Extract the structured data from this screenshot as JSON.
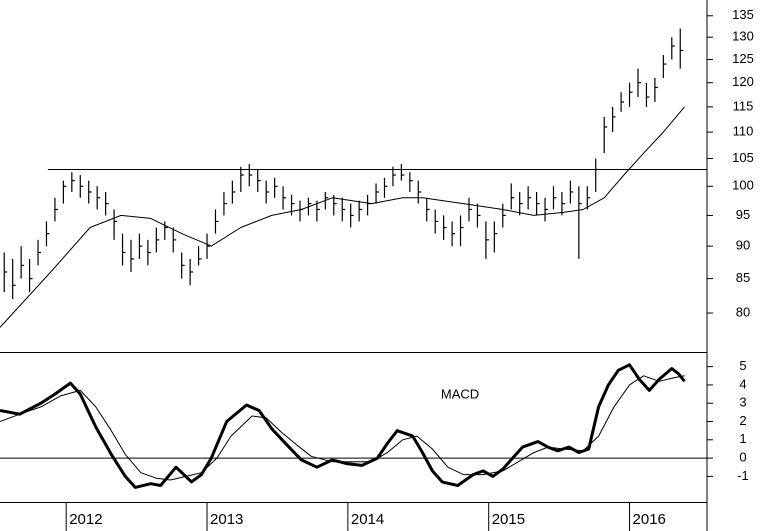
{
  "chart_data": [
    {
      "type": "ohlc",
      "color": "#000000",
      "log": true,
      "xlim": [
        2011.53,
        2016.55
      ],
      "ylim": [
        74.7,
        138.8
      ],
      "yticks": [
        80,
        85,
        90,
        95,
        100,
        105,
        110,
        115,
        120,
        125,
        130,
        135
      ],
      "x": [
        2011.56,
        2011.62,
        2011.68,
        2011.74,
        2011.8,
        2011.86,
        2011.92,
        2011.98,
        2012.04,
        2012.1,
        2012.16,
        2012.22,
        2012.28,
        2012.34,
        2012.4,
        2012.46,
        2012.52,
        2012.58,
        2012.64,
        2012.7,
        2012.76,
        2012.82,
        2012.88,
        2012.94,
        2013.0,
        2013.06,
        2013.12,
        2013.18,
        2013.24,
        2013.3,
        2013.36,
        2013.42,
        2013.48,
        2013.54,
        2013.6,
        2013.66,
        2013.72,
        2013.78,
        2013.84,
        2013.9,
        2013.96,
        2014.02,
        2014.08,
        2014.14,
        2014.2,
        2014.26,
        2014.32,
        2014.38,
        2014.44,
        2014.5,
        2014.56,
        2014.62,
        2014.68,
        2014.74,
        2014.8,
        2014.86,
        2014.92,
        2014.98,
        2015.04,
        2015.1,
        2015.16,
        2015.22,
        2015.28,
        2015.34,
        2015.4,
        2015.46,
        2015.52,
        2015.58,
        2015.64,
        2015.7,
        2015.76,
        2015.82,
        2015.88,
        2015.94,
        2016.0,
        2016.06,
        2016.12,
        2016.18,
        2016.24,
        2016.3,
        2016.36
      ],
      "high": [
        89,
        88,
        90,
        88,
        91,
        94,
        98,
        101,
        102.5,
        102,
        101,
        100,
        99,
        96,
        92,
        91,
        92,
        91,
        93,
        94,
        93,
        89,
        88,
        90,
        92,
        96,
        99,
        101,
        103.5,
        104,
        103,
        101,
        101.5,
        100,
        98.5,
        97.5,
        98,
        97.5,
        99,
        98.5,
        98,
        97,
        97.5,
        98.5,
        100.5,
        101.5,
        103.5,
        104,
        102.5,
        101,
        98,
        96,
        95,
        94,
        95,
        98,
        97,
        94,
        94,
        97,
        100.5,
        99,
        100,
        99,
        98,
        100,
        99,
        101,
        100,
        100,
        105,
        113,
        115,
        118,
        120,
        123,
        120,
        121,
        126,
        130,
        132
      ],
      "low": [
        83,
        82,
        85,
        83,
        87,
        90,
        94,
        97,
        99,
        98,
        97,
        96,
        95,
        91,
        87,
        86,
        88,
        87,
        89,
        91,
        89,
        85,
        84,
        87,
        88,
        92,
        95,
        97,
        99,
        100,
        99,
        97,
        98,
        96,
        95,
        94,
        95,
        94,
        96,
        95,
        94,
        93,
        94,
        95,
        97,
        98,
        100,
        101,
        99,
        97,
        94,
        92,
        91,
        90,
        90,
        94,
        93,
        88,
        89,
        93,
        96,
        95,
        96,
        95,
        94,
        96,
        95,
        97,
        88,
        96,
        99,
        106,
        110,
        114,
        115,
        117,
        115,
        116,
        121,
        125,
        123
      ],
      "close": [
        86,
        84,
        87,
        85,
        89,
        92,
        96,
        100,
        101,
        100,
        99,
        98,
        97,
        94,
        89,
        88,
        90,
        89,
        91,
        93,
        91,
        87,
        86,
        88,
        90,
        94,
        97,
        99,
        102,
        102,
        101,
        99,
        100,
        98,
        97,
        96,
        97,
        96,
        98,
        97,
        96,
        95,
        96,
        97,
        99,
        100,
        102,
        102,
        101,
        99,
        96,
        94,
        93,
        92,
        93,
        96,
        95,
        91,
        92,
        95,
        98,
        97,
        98,
        97,
        96,
        98,
        97,
        99,
        97,
        98,
        103,
        111,
        113,
        116,
        118,
        120,
        117,
        119,
        124,
        128,
        127
      ],
      "lines": [
        {
          "color": "#000000",
          "x": [
            2011.53,
            2011.89,
            2012.17,
            2012.39,
            2012.6,
            2012.82,
            2013.03,
            2013.24,
            2013.46,
            2013.67,
            2013.89,
            2014.17,
            2014.39,
            2014.53,
            2014.82,
            2015.1,
            2015.32,
            2015.53,
            2015.67,
            2015.82,
            2015.96,
            2016.1,
            2016.24,
            2016.39
          ],
          "values": [
            78,
            86,
            93,
            95,
            94.5,
            92,
            90,
            93,
            95,
            96,
            98,
            97,
            98,
            98,
            97,
            96,
            95,
            95.5,
            96,
            98,
            102,
            106,
            110,
            115
          ]
        }
      ],
      "hlines": [
        {
          "value": 103,
          "from": 2011.87
        }
      ]
    },
    {
      "type": "line",
      "title": "MACD",
      "xlim": [
        2011.53,
        2016.55
      ],
      "ylim": [
        -2.4,
        5.8
      ],
      "yticks": [
        -1,
        0,
        1,
        2,
        3,
        4,
        5
      ],
      "xticks": [
        2012,
        2013,
        2014,
        2015,
        2016
      ],
      "hlines": [
        {
          "value": 0,
          "from": 2011.53
        }
      ],
      "series": [
        {
          "color": "#000000",
          "width": 3,
          "x": [
            2011.53,
            2011.67,
            2011.82,
            2011.92,
            2012.03,
            2012.1,
            2012.21,
            2012.32,
            2012.42,
            2012.49,
            2012.6,
            2012.67,
            2012.78,
            2012.89,
            2012.96,
            2013.03,
            2013.14,
            2013.28,
            2013.37,
            2013.46,
            2013.57,
            2013.67,
            2013.78,
            2013.89,
            2013.99,
            2014.1,
            2014.21,
            2014.28,
            2014.35,
            2014.46,
            2014.53,
            2014.6,
            2014.67,
            2014.78,
            2014.89,
            2014.96,
            2015.03,
            2015.1,
            2015.17,
            2015.24,
            2015.35,
            2015.42,
            2015.49,
            2015.57,
            2015.64,
            2015.71,
            2015.78,
            2015.85,
            2015.92,
            2016.0,
            2016.07,
            2016.14,
            2016.21,
            2016.3,
            2016.35,
            2016.39
          ],
          "values": [
            2.6,
            2.4,
            3.0,
            3.5,
            4.1,
            3.5,
            1.7,
            0.2,
            -1.0,
            -1.6,
            -1.4,
            -1.5,
            -0.5,
            -1.3,
            -0.9,
            0.0,
            2.0,
            2.9,
            2.6,
            1.6,
            0.7,
            -0.1,
            -0.5,
            -0.1,
            -0.3,
            -0.4,
            0.0,
            0.8,
            1.5,
            1.2,
            0.3,
            -0.7,
            -1.3,
            -1.5,
            -0.9,
            -0.7,
            -1.0,
            -0.6,
            0.0,
            0.6,
            0.9,
            0.6,
            0.4,
            0.6,
            0.3,
            0.5,
            2.8,
            4.0,
            4.8,
            5.1,
            4.3,
            3.7,
            4.3,
            4.9,
            4.6,
            4.2
          ]
        },
        {
          "color": "#000000",
          "width": 1,
          "x": [
            2011.53,
            2011.67,
            2011.82,
            2011.96,
            2012.1,
            2012.21,
            2012.32,
            2012.42,
            2012.53,
            2012.64,
            2012.74,
            2012.85,
            2012.96,
            2013.07,
            2013.17,
            2013.32,
            2013.42,
            2013.53,
            2013.64,
            2013.74,
            2013.89,
            2014.03,
            2014.17,
            2014.28,
            2014.39,
            2014.49,
            2014.6,
            2014.71,
            2014.82,
            2014.96,
            2015.1,
            2015.21,
            2015.32,
            2015.42,
            2015.53,
            2015.67,
            2015.78,
            2015.89,
            2016.0,
            2016.1,
            2016.21,
            2016.32,
            2016.39
          ],
          "values": [
            2.0,
            2.4,
            2.8,
            3.4,
            3.7,
            2.8,
            1.5,
            0.2,
            -0.8,
            -1.1,
            -1.2,
            -1.0,
            -0.8,
            0.0,
            1.2,
            2.3,
            2.2,
            1.4,
            0.7,
            0.1,
            -0.2,
            -0.2,
            -0.2,
            0.3,
            1.0,
            1.2,
            0.5,
            -0.5,
            -0.9,
            -0.9,
            -0.7,
            -0.2,
            0.3,
            0.6,
            0.5,
            0.4,
            1.2,
            2.8,
            4.0,
            4.5,
            4.2,
            4.4,
            4.5
          ]
        }
      ]
    }
  ]
}
